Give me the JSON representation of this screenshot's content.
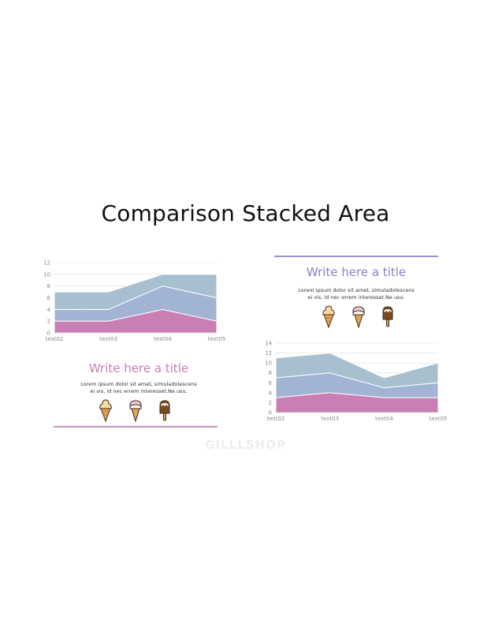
{
  "page": {
    "title": "Comparison Stacked Area",
    "watermark": "GILLLSHOP"
  },
  "colors": {
    "pink": "#c97fb3",
    "pattern_fg": "#7f98c4",
    "pattern_bg": "#c4d0e4",
    "light_blue": "#a7bfcf",
    "grid": "#dddddd",
    "title_pink": "#c77fb4",
    "title_purple": "#8c80c9",
    "rule_pink": "#c98fc0",
    "rule_purple": "#9a8fcc"
  },
  "left_block": {
    "title": "Write here a title",
    "text": "Lorem ipsum dolor sit amet, simuladolescens\nei vis, id nec errem interesset.Ne usu."
  },
  "right_block": {
    "title": "Write here a title",
    "text": "Lorem ipsum dolor sit amet, simuladolescens\nei vis, id nec errem interesset.Ne usu."
  },
  "icons": [
    "vanilla-ice-cream-cone-icon",
    "strawberry-ice-cream-cone-icon",
    "chocolate-ice-cream-bar-icon"
  ],
  "chart_data": [
    {
      "type": "area",
      "stacked": true,
      "categories": [
        "text02",
        "text03",
        "text04",
        "text05"
      ],
      "ylim": [
        0,
        12
      ],
      "yticks": [
        0,
        2,
        4,
        6,
        8,
        10,
        12
      ],
      "grid": true,
      "series": [
        {
          "values": [
            2,
            2,
            4,
            2
          ],
          "fill": "solid-pink"
        },
        {
          "values": [
            2,
            2,
            4,
            4
          ],
          "fill": "blue-check-pattern"
        },
        {
          "values": [
            3,
            3,
            2,
            4
          ],
          "fill": "solid-light-blue"
        }
      ]
    },
    {
      "type": "area",
      "stacked": true,
      "categories": [
        "text02",
        "text03",
        "text04",
        "text05"
      ],
      "ylim": [
        0,
        14
      ],
      "yticks": [
        0,
        2,
        4,
        6,
        8,
        10,
        12,
        14
      ],
      "grid": true,
      "series": [
        {
          "values": [
            3,
            4,
            3,
            3
          ],
          "fill": "solid-pink"
        },
        {
          "values": [
            4,
            4,
            2,
            3
          ],
          "fill": "blue-check-pattern"
        },
        {
          "values": [
            4,
            4,
            2,
            4
          ],
          "fill": "solid-light-blue"
        }
      ]
    }
  ]
}
